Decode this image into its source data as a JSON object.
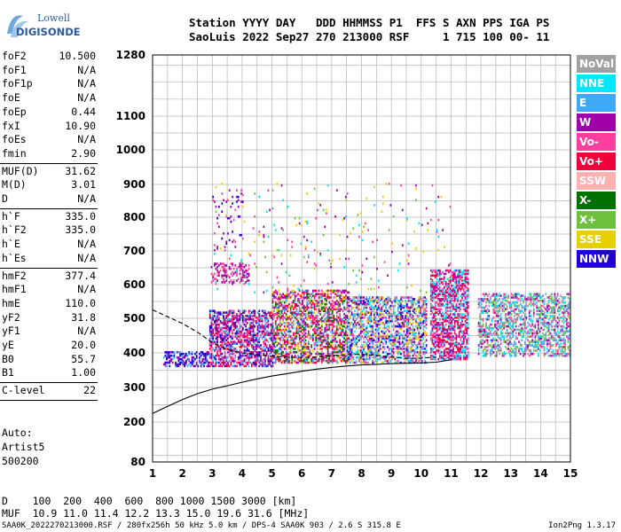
{
  "logo": {
    "line1": "Lowell",
    "line2": "DIGISONDE"
  },
  "header": {
    "line1": "Station YYYY DAY   DDD HHMMSS P1  FFS S AXN PPS IGA PS",
    "line2": "SaoLuis 2022 Sep27 270 213000 RSF     1 715 100 00- 11"
  },
  "params_group1": [
    {
      "key": "foF2",
      "value": "10.500"
    },
    {
      "key": "foF1",
      "value": "N/A"
    },
    {
      "key": "foF1p",
      "value": "N/A"
    },
    {
      "key": "foE",
      "value": "N/A"
    },
    {
      "key": "foEp",
      "value": "0.44"
    },
    {
      "key": "fxI",
      "value": "10.90"
    },
    {
      "key": "foEs",
      "value": "N/A"
    },
    {
      "key": "fmin",
      "value": "2.90"
    }
  ],
  "params_group2": [
    {
      "key": "MUF(D)",
      "value": "31.62"
    },
    {
      "key": "M(D)",
      "value": "3.01"
    },
    {
      "key": "D",
      "value": "N/A"
    }
  ],
  "params_group3": [
    {
      "key": "h`F",
      "value": "335.0"
    },
    {
      "key": "h`F2",
      "value": "335.0"
    },
    {
      "key": "h`E",
      "value": "N/A"
    },
    {
      "key": "h`Es",
      "value": "N/A"
    }
  ],
  "params_group4": [
    {
      "key": "hmF2",
      "value": "377.4"
    },
    {
      "key": "hmF1",
      "value": "N/A"
    },
    {
      "key": "hmE",
      "value": "110.0"
    },
    {
      "key": "yF2",
      "value": "31.8"
    },
    {
      "key": "yF1",
      "value": "N/A"
    },
    {
      "key": "yE",
      "value": "20.0"
    },
    {
      "key": "B0",
      "value": "55.7"
    },
    {
      "key": "B1",
      "value": "1.00"
    }
  ],
  "params_group5": [
    {
      "key": "C-level",
      "value": "22"
    }
  ],
  "auto_text": "Auto:\nArtist5\n500200",
  "muf_table": {
    "row1": "D    100  200  400  600  800 1000 1500 3000 [km]",
    "row2": "MUF  10.9 11.0 11.4 12.2 13.3 15.0 19.6 31.6 [MHz]"
  },
  "footer": "SAA0K_2022270213000.RSF / 280fx256h 50 kHz 5.0 km / DPS-4 SAA0K 903 / 2.6 S 315.8 E",
  "version": "Ion2Png 1.3.17",
  "chart_data": {
    "type": "scatter",
    "xlabel": "",
    "ylabel": "",
    "xlim": [
      1,
      15
    ],
    "ylim": [
      80,
      1280
    ],
    "x_ticks": [
      1,
      2,
      3,
      4,
      5,
      6,
      7,
      8,
      9,
      10,
      11,
      12,
      13,
      14,
      15
    ],
    "y_ticks": [
      80,
      200,
      300,
      400,
      500,
      600,
      700,
      800,
      900,
      1000,
      1100,
      1280
    ],
    "y_scale": "nonlinear (frequency-height ionogram scale, compressed at low heights)",
    "grid": true,
    "legend_position": "right",
    "legend": [
      {
        "name": "NoVal",
        "color": "#a0a0a0"
      },
      {
        "name": "NNE",
        "color": "#00e6ff"
      },
      {
        "name": "E",
        "color": "#3fa9f5"
      },
      {
        "name": "W",
        "color": "#a000a8"
      },
      {
        "name": "Vo-",
        "color": "#ff3fa0"
      },
      {
        "name": "Vo+",
        "color": "#f0003a"
      },
      {
        "name": "SSW",
        "color": "#ffb0b0"
      },
      {
        "name": "X-",
        "color": "#007000"
      },
      {
        "name": "X+",
        "color": "#70c040"
      },
      {
        "name": "SSE",
        "color": "#e8d000"
      },
      {
        "name": "NNW",
        "color": "#2000d0"
      }
    ],
    "traces": [
      {
        "name": "lower profile",
        "color": "#000000",
        "style": "solid",
        "points": [
          [
            1.0,
            225
          ],
          [
            1.5,
            245
          ],
          [
            2.0,
            265
          ],
          [
            2.5,
            282
          ],
          [
            3.0,
            295
          ],
          [
            3.5,
            305
          ],
          [
            4.0,
            315
          ],
          [
            4.5,
            325
          ],
          [
            5.0,
            333
          ],
          [
            5.5,
            340
          ],
          [
            6.0,
            347
          ],
          [
            6.5,
            353
          ],
          [
            7.0,
            358
          ],
          [
            7.5,
            362
          ],
          [
            8.0,
            365
          ],
          [
            8.5,
            367
          ],
          [
            9.0,
            369
          ],
          [
            9.5,
            370
          ],
          [
            10.0,
            371
          ],
          [
            10.5,
            373
          ],
          [
            11.0,
            380
          ]
        ]
      },
      {
        "name": "upper profile",
        "color": "#000000",
        "style": "dashed",
        "points": [
          [
            1.0,
            525
          ],
          [
            1.5,
            505
          ],
          [
            2.0,
            485
          ],
          [
            2.5,
            460
          ],
          [
            3.0,
            430
          ],
          [
            3.5,
            410
          ],
          [
            4.0,
            400
          ],
          [
            4.5,
            395
          ],
          [
            5.0,
            390
          ],
          [
            5.5,
            388
          ],
          [
            6.0,
            387
          ],
          [
            6.5,
            388
          ],
          [
            7.0,
            392
          ],
          [
            7.5,
            395
          ],
          [
            8.0,
            396
          ],
          [
            8.5,
            393
          ],
          [
            9.0,
            388
          ],
          [
            9.5,
            384
          ],
          [
            10.0,
            385
          ],
          [
            10.5,
            388
          ]
        ]
      }
    ],
    "echo_regions": [
      {
        "x": [
          1.35,
          2.85
        ],
        "y": [
          360,
          400
        ],
        "density": 0.55,
        "colors": [
          "#2000d0",
          "#2000d0",
          "#a000a8",
          "#3fa9f5"
        ]
      },
      {
        "x": [
          2.9,
          5.0
        ],
        "y": [
          360,
          520
        ],
        "density": 0.6,
        "colors": [
          "#ff3fa0",
          "#a000a8",
          "#f0003a",
          "#2000d0",
          "#3fa9f5"
        ]
      },
      {
        "x": [
          2.95,
          4.2
        ],
        "y": [
          600,
          660
        ],
        "density": 0.35,
        "colors": [
          "#ff3fa0",
          "#a000a8"
        ]
      },
      {
        "x": [
          3.0,
          4.0
        ],
        "y": [
          700,
          900
        ],
        "density": 0.06,
        "colors": [
          "#2000d0",
          "#a000a8",
          "#ff3fa0"
        ]
      },
      {
        "x": [
          5.0,
          7.5
        ],
        "y": [
          370,
          580
        ],
        "density": 0.55,
        "colors": [
          "#f0003a",
          "#ff3fa0",
          "#007000",
          "#e8d000",
          "#a000a8",
          "#3fa9f5"
        ]
      },
      {
        "x": [
          7.5,
          10.2
        ],
        "y": [
          370,
          560
        ],
        "density": 0.55,
        "colors": [
          "#00e6ff",
          "#3fa9f5",
          "#e8d000",
          "#a000a8",
          "#ff3fa0",
          "#2000d0",
          "#a0a0a0"
        ]
      },
      {
        "x": [
          10.3,
          11.6
        ],
        "y": [
          380,
          640
        ],
        "density": 0.6,
        "colors": [
          "#f0003a",
          "#ff3fa0",
          "#a000a8",
          "#00e6ff"
        ]
      },
      {
        "x": [
          11.9,
          15.0
        ],
        "y": [
          390,
          570
        ],
        "density": 0.45,
        "colors": [
          "#00e6ff",
          "#3fa9f5",
          "#a0a0a0",
          "#ff3fa0",
          "#a000a8",
          "#70c040"
        ]
      },
      {
        "x": [
          3.0,
          11.0
        ],
        "y": [
          560,
          900
        ],
        "density": 0.02,
        "colors": [
          "#a000a8",
          "#ff3fa0",
          "#70c040",
          "#e8d000",
          "#00e6ff"
        ]
      }
    ]
  }
}
